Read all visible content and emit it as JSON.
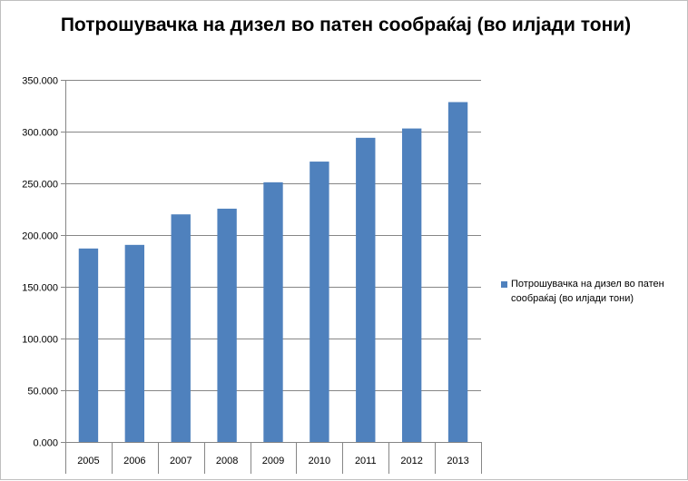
{
  "chart_data": {
    "type": "bar",
    "title": "Потрошувачка на дизел во патен сообраќај (во илјади тони)",
    "categories": [
      "2005",
      "2006",
      "2007",
      "2008",
      "2009",
      "2010",
      "2011",
      "2012",
      "2013"
    ],
    "series": [
      {
        "name": "Потрошувачка на дизел во патен сообраќај (во илјади тони)",
        "values": [
          187,
          190.5,
          220,
          225.5,
          251,
          271,
          294,
          303,
          328.5
        ],
        "color": "#4f81bd"
      }
    ],
    "ylim": [
      0,
      350
    ],
    "yticks": [
      0,
      50,
      100,
      150,
      200,
      250,
      300,
      350
    ],
    "ytick_labels": [
      "0.000",
      "50.000",
      "100.000",
      "150.000",
      "200.000",
      "250.000",
      "300.000",
      "350.000"
    ],
    "xlabel": "",
    "ylabel": "",
    "grid": true,
    "legend_position": "right"
  }
}
